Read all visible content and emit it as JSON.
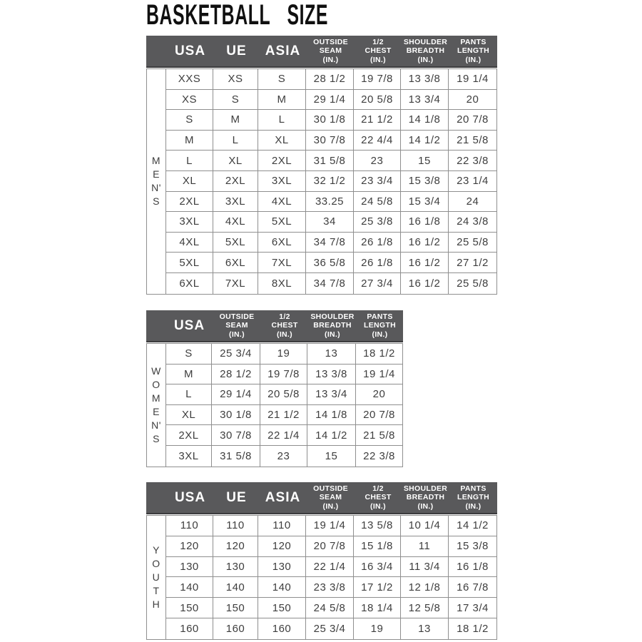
{
  "page": {
    "title": "BASKETBALL SIZE"
  },
  "colors": {
    "header_bg": "#59595b",
    "header_text": "#ffffff",
    "border": "#8f8f8f",
    "body_text": "#3e3e3e",
    "title_text": "#101010"
  },
  "tables": {
    "mens": {
      "group_label": "M\nE\nN'\nS",
      "headers": [
        "USA",
        "UE",
        "ASIA",
        "OUTSIDE\nSEAM\n(IN.)",
        "1/2\nCHEST\n(IN.)",
        "SHOULDER\nBREADTH\n(IN.)",
        "PANTS\nLENGTH\n(IN.)"
      ],
      "rows": [
        [
          "XXS",
          "XS",
          "S",
          "28 1/2",
          "19 7/8",
          "13 3/8",
          "19 1/4"
        ],
        [
          "XS",
          "S",
          "M",
          "29 1/4",
          "20 5/8",
          "13 3/4",
          "20"
        ],
        [
          "S",
          "M",
          "L",
          "30 1/8",
          "21 1/2",
          "14 1/8",
          "20 7/8"
        ],
        [
          "M",
          "L",
          "XL",
          "30 7/8",
          "22 4/4",
          "14 1/2",
          "21 5/8"
        ],
        [
          "L",
          "XL",
          "2XL",
          "31 5/8",
          "23",
          "15",
          "22 3/8"
        ],
        [
          "XL",
          "2XL",
          "3XL",
          "32 1/2",
          "23 3/4",
          "15 3/8",
          "23 1/4"
        ],
        [
          "2XL",
          "3XL",
          "4XL",
          "33.25",
          "24 5/8",
          "15 3/4",
          "24"
        ],
        [
          "3XL",
          "4XL",
          "5XL",
          "34",
          "25 3/8",
          "16 1/8",
          "24 3/8"
        ],
        [
          "4XL",
          "5XL",
          "6XL",
          "34 7/8",
          "26 1/8",
          "16 1/2",
          "25 5/8"
        ],
        [
          "5XL",
          "6XL",
          "7XL",
          "36 5/8",
          "26 1/8",
          "16 1/2",
          "27 1/2"
        ],
        [
          "6XL",
          "7XL",
          "8XL",
          "34 7/8",
          "27 3/4",
          "16 1/2",
          "25 5/8"
        ]
      ]
    },
    "womens": {
      "group_label": "W\nO\nM\nE\nN'\nS",
      "headers": [
        "USA",
        "OUTSIDE\nSEAM\n(IN.)",
        "1/2\nCHEST\n(IN.)",
        "SHOULDER\nBREADTH\n(IN.)",
        "PANTS\nLENGTH\n(IN.)"
      ],
      "rows": [
        [
          "S",
          "25 3/4",
          "19",
          "13",
          "18 1/2"
        ],
        [
          "M",
          "28 1/2",
          "19 7/8",
          "13 3/8",
          "19 1/4"
        ],
        [
          "L",
          "29 1/4",
          "20 5/8",
          "13 3/4",
          "20"
        ],
        [
          "XL",
          "30 1/8",
          "21 1/2",
          "14 1/8",
          "20 7/8"
        ],
        [
          "2XL",
          "30 7/8",
          "22 1/4",
          "14 1/2",
          "21 5/8"
        ],
        [
          "3XL",
          "31 5/8",
          "23",
          "15",
          "22 3/8"
        ]
      ]
    },
    "youth": {
      "group_label": "Y\nO\nU\nT\nH",
      "headers": [
        "USA",
        "UE",
        "ASIA",
        "OUTSIDE\nSEAM\n(IN.)",
        "1/2\nCHEST\n(IN.)",
        "SHOULDER\nBREADTH\n(IN.)",
        "PANTS\nLENGTH\n(IN.)"
      ],
      "rows": [
        [
          "110",
          "110",
          "110",
          "19 1/4",
          "13 5/8",
          "10 1/4",
          "14 1/2"
        ],
        [
          "120",
          "120",
          "120",
          "20 7/8",
          "15 1/8",
          "11",
          "15 3/8"
        ],
        [
          "130",
          "130",
          "130",
          "22 1/4",
          "16 3/4",
          "11 3/4",
          "16 1/8"
        ],
        [
          "140",
          "140",
          "140",
          "23 3/8",
          "17 1/2",
          "12 1/8",
          "16 7/8"
        ],
        [
          "150",
          "150",
          "150",
          "24 5/8",
          "18 1/4",
          "12 5/8",
          "17 3/4"
        ],
        [
          "160",
          "160",
          "160",
          "25 3/4",
          "19",
          "13",
          "18 1/2"
        ]
      ]
    }
  }
}
